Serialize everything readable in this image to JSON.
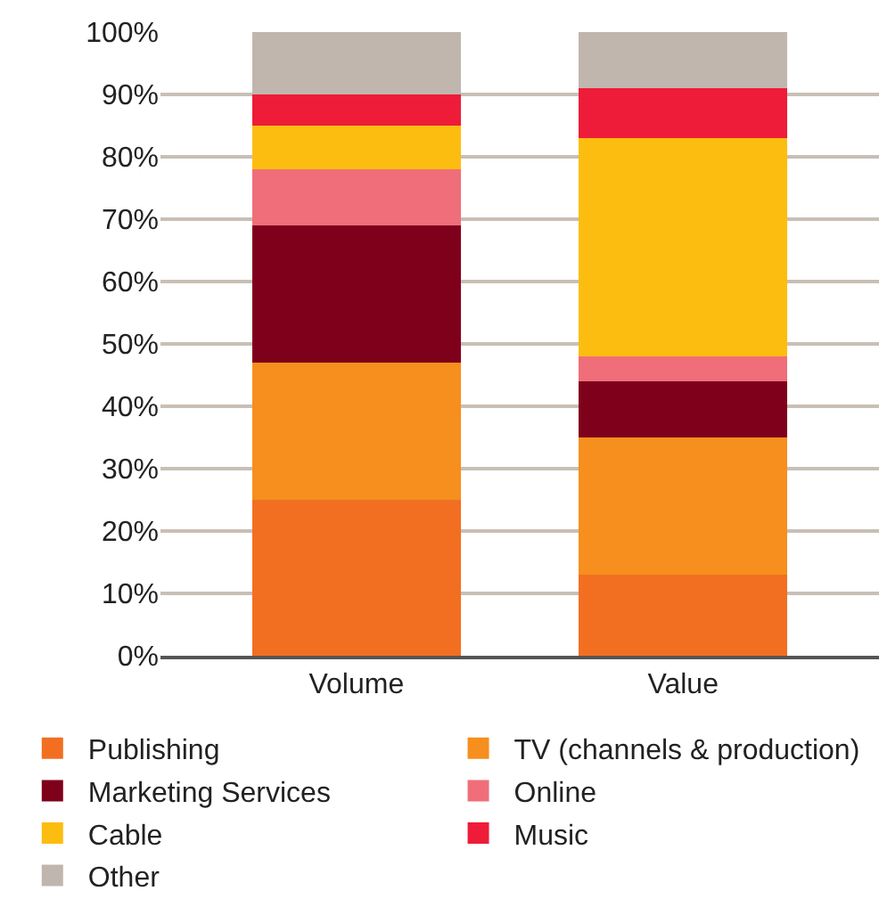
{
  "chart_data": {
    "type": "bar",
    "stacked": true,
    "categories": [
      "Volume",
      "Value"
    ],
    "series": [
      {
        "name": "Publishing",
        "color": "#f26f21",
        "values": [
          25,
          13
        ]
      },
      {
        "name": "TV (channels & production)",
        "color": "#f68f1e",
        "values": [
          22,
          22
        ]
      },
      {
        "name": "Marketing Services",
        "color": "#7f001a",
        "values": [
          22,
          9
        ]
      },
      {
        "name": "Online",
        "color": "#f06e7a",
        "values": [
          9,
          4
        ]
      },
      {
        "name": "Cable",
        "color": "#fdbd10",
        "values": [
          7,
          35
        ]
      },
      {
        "name": "Music",
        "color": "#ee1c38",
        "values": [
          5,
          8
        ]
      },
      {
        "name": "Other",
        "color": "#c0b6ad",
        "values": [
          10,
          9
        ]
      }
    ],
    "ylim": [
      0,
      100
    ],
    "yticks": [
      {
        "value": 0,
        "label": "0%"
      },
      {
        "value": 10,
        "label": "10%"
      },
      {
        "value": 20,
        "label": "20%"
      },
      {
        "value": 30,
        "label": "30%"
      },
      {
        "value": 40,
        "label": "40%"
      },
      {
        "value": 50,
        "label": "50%"
      },
      {
        "value": 60,
        "label": "60%"
      },
      {
        "value": 70,
        "label": "70%"
      },
      {
        "value": 80,
        "label": "80%"
      },
      {
        "value": 90,
        "label": "90%"
      },
      {
        "value": 100,
        "label": "100%"
      }
    ],
    "grid": "y",
    "legend": "bottom"
  }
}
